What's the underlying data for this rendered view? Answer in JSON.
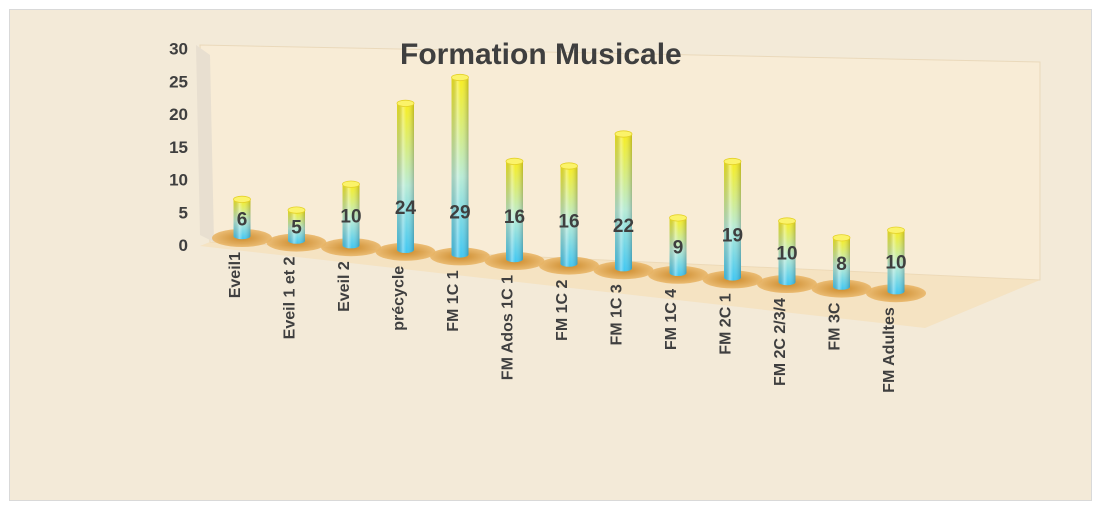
{
  "chart_data": {
    "type": "bar",
    "title": "Formation Musicale",
    "xlabel": "",
    "ylabel": "",
    "ylim": [
      0,
      30
    ],
    "yticks": [
      0,
      5,
      10,
      15,
      20,
      25,
      30
    ],
    "grid": false,
    "legend": "none",
    "categories": [
      "Eveil1",
      "Eveil 1 et 2",
      "Eveil 2",
      "précycle",
      "FM 1C 1",
      "FM Ados 1C 1",
      "FM 1C 2",
      "FM 1C 3",
      "FM 1C 4",
      "FM 2C 1",
      "FM 2C 2/3/4",
      "FM 3C",
      "FM Adultes"
    ],
    "values": [
      6,
      5,
      10,
      24,
      29,
      16,
      16,
      22,
      9,
      19,
      10,
      8,
      10
    ],
    "colors": {
      "bar_top": "#f7ef2a",
      "bar_bottom": "#3fc6f0",
      "base": "#e5a94a",
      "background": "#f3ead8",
      "text": "#3f3f3f"
    }
  }
}
